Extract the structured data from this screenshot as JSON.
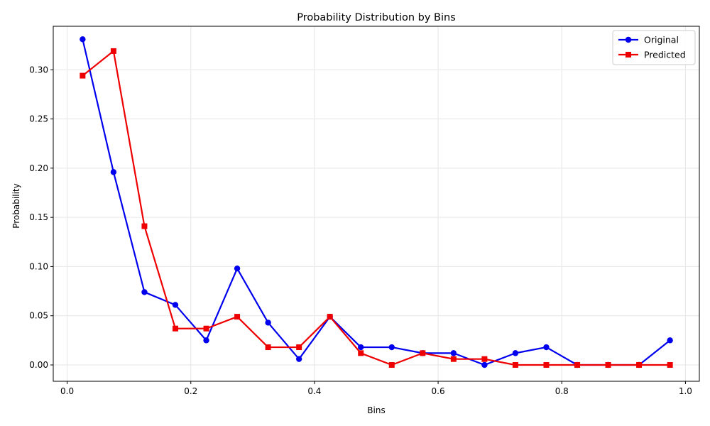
{
  "chart_data": {
    "type": "line",
    "title": "Probability Distribution by Bins",
    "xlabel": "Bins",
    "ylabel": "Probability",
    "xlim": [
      -0.0225,
      1.0225
    ],
    "ylim": [
      -0.0166,
      0.3442
    ],
    "xticks": [
      0.0,
      0.2,
      0.4,
      0.6,
      0.8,
      1.0
    ],
    "xtick_labels": [
      "0.0",
      "0.2",
      "0.4",
      "0.6",
      "0.8",
      "1.0"
    ],
    "yticks": [
      0.0,
      0.05,
      0.1,
      0.15,
      0.2,
      0.25,
      0.3
    ],
    "ytick_labels": [
      "0.00",
      "0.05",
      "0.10",
      "0.15",
      "0.20",
      "0.25",
      "0.30"
    ],
    "grid": true,
    "legend": "top-right",
    "x": [
      0.025,
      0.075,
      0.125,
      0.175,
      0.225,
      0.275,
      0.325,
      0.375,
      0.425,
      0.475,
      0.525,
      0.575,
      0.625,
      0.675,
      0.725,
      0.775,
      0.825,
      0.875,
      0.925,
      0.975
    ],
    "series": [
      {
        "name": "Original",
        "color": "#0000ee",
        "marker": "circle",
        "values": [
          0.331,
          0.196,
          0.074,
          0.061,
          0.025,
          0.098,
          0.043,
          0.006,
          0.049,
          0.018,
          0.018,
          0.012,
          0.012,
          0.0,
          0.012,
          0.018,
          0.0,
          0.0,
          0.0,
          0.025
        ]
      },
      {
        "name": "Predicted",
        "color": "#ee0000",
        "marker": "square",
        "values": [
          0.294,
          0.319,
          0.141,
          0.037,
          0.037,
          0.049,
          0.018,
          0.018,
          0.049,
          0.012,
          0.0,
          0.012,
          0.006,
          0.006,
          0.0,
          0.0,
          0.0,
          0.0,
          0.0,
          0.0
        ]
      }
    ]
  }
}
